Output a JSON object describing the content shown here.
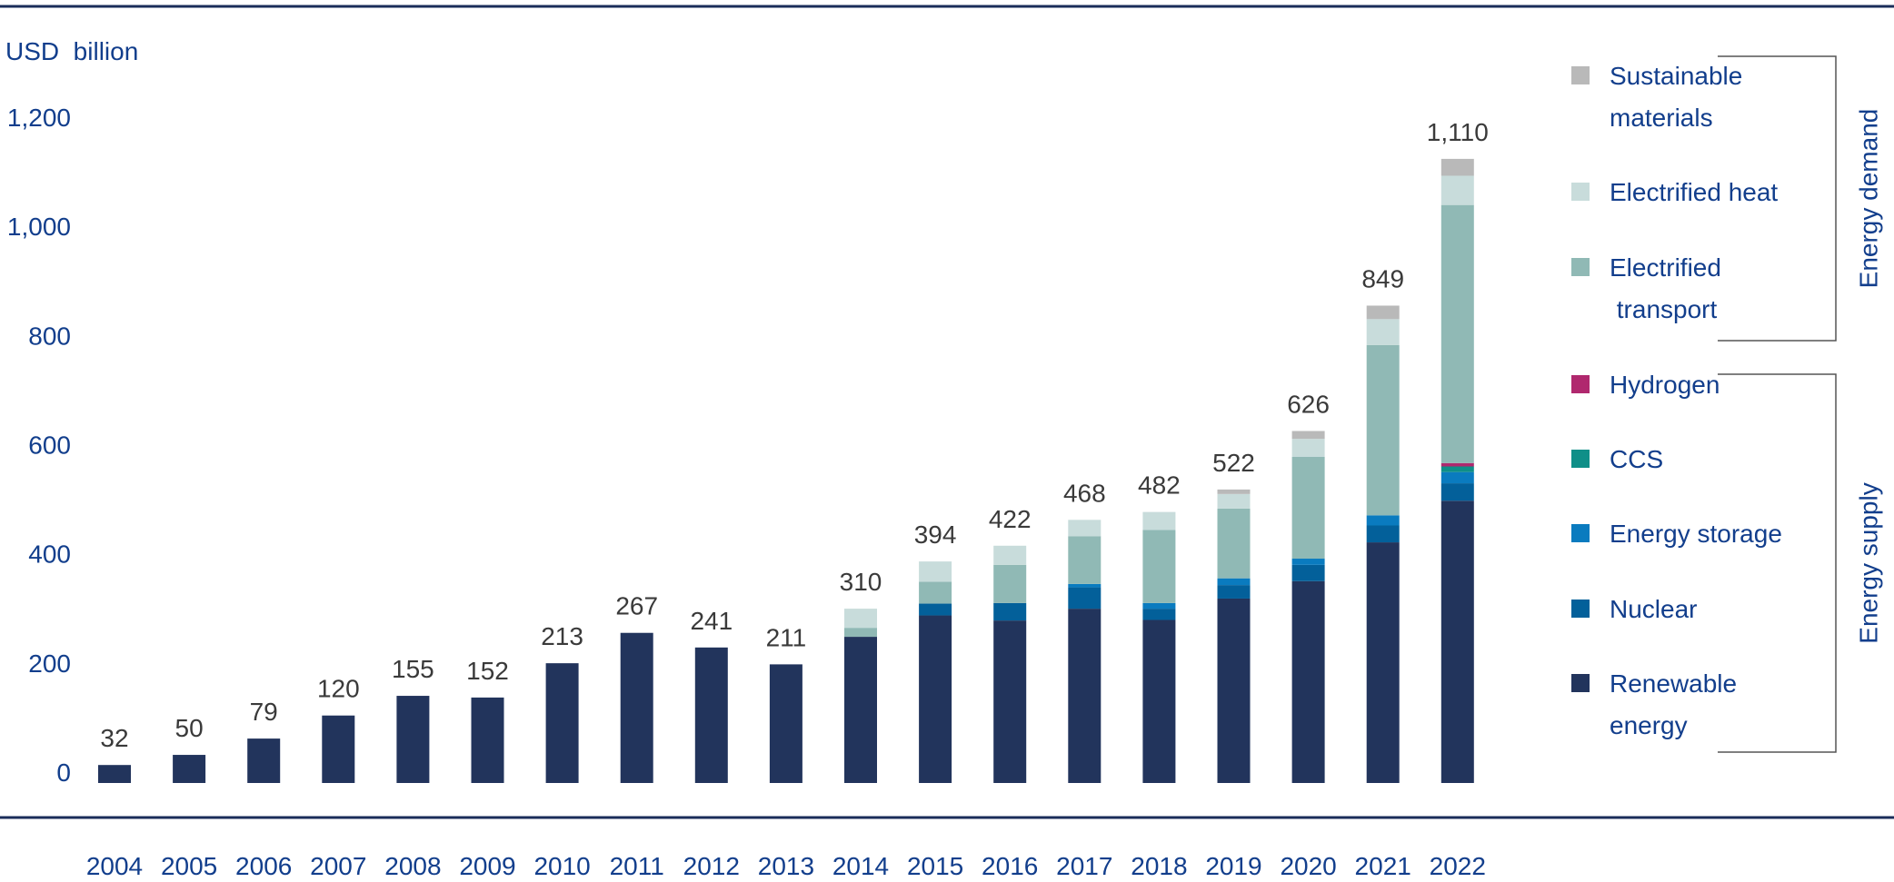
{
  "chart_data": {
    "type": "bar",
    "stacked": true,
    "ylabel": "USD  billion",
    "ylim": [
      0,
      1200
    ],
    "yticks": [
      "0",
      "200",
      "400",
      "600",
      "800",
      "1,000",
      "1,200"
    ],
    "ytick_values": [
      0,
      200,
      400,
      600,
      800,
      1000,
      1200
    ],
    "categories": [
      "2004",
      "2005",
      "2006",
      "2007",
      "2008",
      "2009",
      "2010",
      "2011",
      "2012",
      "2013",
      "2014",
      "2015",
      "2016",
      "2017",
      "2018",
      "2019",
      "2020",
      "2021",
      "2022"
    ],
    "totals": [
      32,
      50,
      79,
      120,
      155,
      152,
      213,
      267,
      241,
      211,
      310,
      394,
      422,
      468,
      482,
      522,
      626,
      849,
      1110
    ],
    "total_labels": [
      "32",
      "50",
      "79",
      "120",
      "155",
      "152",
      "213",
      "267",
      "241",
      "211",
      "310",
      "394",
      "422",
      "468",
      "482",
      "522",
      "626",
      "849",
      "1,110"
    ],
    "series": [
      {
        "name": "Renewable energy",
        "legend_lines": [
          "Renewable",
          "energy"
        ],
        "color": "#22345c",
        "values": [
          32,
          50,
          79,
          120,
          155,
          152,
          213,
          267,
          241,
          211,
          260,
          298,
          289,
          310,
          290,
          328,
          359,
          428,
          502
        ]
      },
      {
        "name": "Nuclear",
        "legend_lines": [
          "Nuclear"
        ],
        "color": "#03609a",
        "values": [
          0,
          0,
          0,
          0,
          0,
          0,
          0,
          0,
          0,
          0,
          0,
          21,
          31,
          38,
          20,
          24,
          29,
          30,
          31
        ]
      },
      {
        "name": "Energy storage",
        "legend_lines": [
          "Energy storage"
        ],
        "color": "#0a7bbf",
        "values": [
          0,
          0,
          0,
          0,
          0,
          0,
          0,
          0,
          0,
          0,
          0,
          0,
          0,
          6,
          10,
          12,
          11,
          18,
          20
        ]
      },
      {
        "name": "CCS",
        "legend_lines": [
          "CCS"
        ],
        "color": "#0f8f88",
        "values": [
          0,
          0,
          0,
          0,
          0,
          0,
          0,
          0,
          0,
          0,
          0,
          0,
          0,
          0,
          0,
          0,
          0,
          0,
          10
        ]
      },
      {
        "name": "Hydrogen",
        "legend_lines": [
          "Hydrogen"
        ],
        "color": "#b0286e",
        "values": [
          0,
          0,
          0,
          0,
          0,
          0,
          0,
          0,
          0,
          0,
          0,
          0,
          0,
          0,
          0,
          0,
          0,
          0,
          6
        ]
      },
      {
        "name": "Electrified transport",
        "legend_lines": [
          "Electrified",
          " transport"
        ],
        "color": "#90b9b5",
        "values": [
          0,
          0,
          0,
          0,
          0,
          0,
          0,
          0,
          0,
          0,
          16,
          39,
          68,
          85,
          130,
          124,
          181,
          303,
          459
        ]
      },
      {
        "name": "Electrified heat",
        "legend_lines": [
          "Electrified heat"
        ],
        "color": "#c8dcdb",
        "values": [
          0,
          0,
          0,
          0,
          0,
          0,
          0,
          0,
          0,
          0,
          34,
          36,
          34,
          29,
          32,
          26,
          32,
          46,
          52
        ]
      },
      {
        "name": "Sustainable materials",
        "legend_lines": [
          "Sustainable",
          "materials"
        ],
        "color": "#b9b9b9",
        "values": [
          0,
          0,
          0,
          0,
          0,
          0,
          0,
          0,
          0,
          0,
          0,
          0,
          0,
          0,
          0,
          8,
          14,
          24,
          30
        ]
      }
    ],
    "legend_groups": [
      {
        "label": "Energy demand",
        "members": [
          "Sustainable materials",
          "Electrified heat",
          "Electrified transport"
        ]
      },
      {
        "label": "Energy supply",
        "members": [
          "Hydrogen",
          "CCS",
          "Energy storage",
          "Nuclear",
          "Renewable energy"
        ]
      }
    ],
    "legend_position": "right",
    "grid": false,
    "colors": {
      "axis_text": "#123e8c",
      "rule": "#1a2d5a",
      "data_label": "#3a3a3a"
    }
  }
}
